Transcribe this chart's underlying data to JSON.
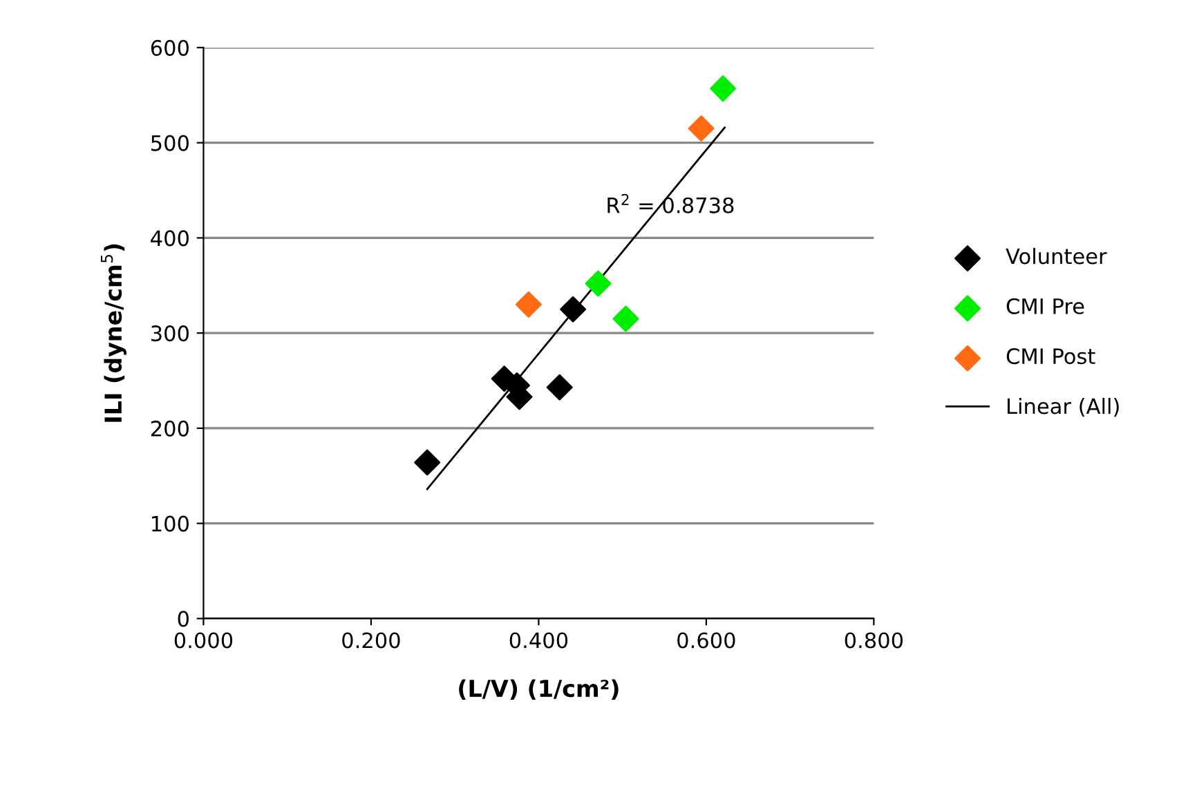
{
  "chart_data": {
    "type": "scatter",
    "xlabel": "(L/V) (1/cm²)",
    "ylabel": "ILI (dyne/cm$^{5}$)",
    "xlim": [
      0,
      0.8
    ],
    "xticks": [
      {
        "value": 0,
        "label": "0.000"
      },
      {
        "value": 0.2,
        "label": "0.200"
      },
      {
        "value": 0.4,
        "label": "0.400"
      },
      {
        "value": 0.6,
        "label": "0.600"
      },
      {
        "value": 0.8,
        "label": "0.800"
      }
    ],
    "ylim": [
      0,
      600
    ],
    "yticks": [
      0,
      100,
      200,
      300,
      400,
      500,
      600
    ],
    "grid": "y",
    "legend": "right",
    "marker": "diamond",
    "series": [
      {
        "name": "Volunteer",
        "color": "#000000",
        "x": [
          0.267,
          0.359,
          0.374,
          0.377,
          0.425,
          0.441
        ],
        "values": [
          164,
          252,
          245,
          233,
          243,
          325
        ]
      },
      {
        "name": "CMI Pre",
        "color": "#00ee00",
        "x": [
          0.471,
          0.504,
          0.62
        ],
        "values": [
          352,
          315,
          557
        ]
      },
      {
        "name": "CMI Post",
        "color": "#ff6a13",
        "x": [
          0.388,
          0.594
        ],
        "values": [
          330,
          515
        ]
      },
      {
        "name": "Linear (All)",
        "type": "line",
        "color": "#000000",
        "marker": "none",
        "x": [
          0.267,
          0.622
        ],
        "values": [
          136,
          516
        ]
      }
    ],
    "annotations": [
      "R$^{2}$ = 0.8738"
    ]
  }
}
